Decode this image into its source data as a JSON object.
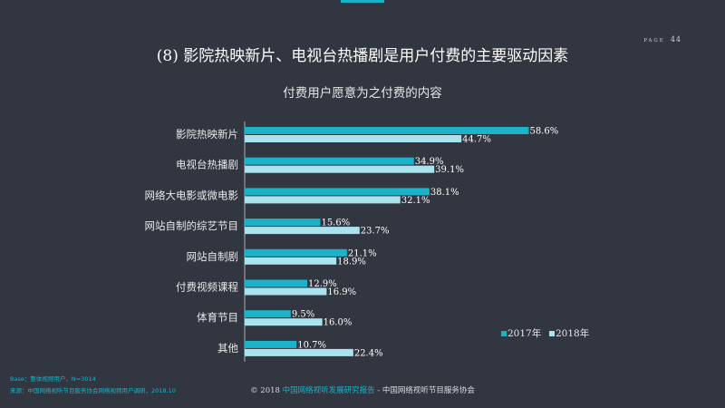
{
  "page": {
    "label": "PAGE",
    "number": "44"
  },
  "title": "(8) 影院热映新片、电视台热播剧是用户付费的主要驱动因素",
  "chart_data": {
    "type": "bar",
    "orientation": "horizontal",
    "title": "付费用户愿意为之付费的内容",
    "categories": [
      "影院热映新片",
      "电视台热播剧",
      "网络大电影或微电影",
      "网站自制的综艺节目",
      "网站自制剧",
      "付费视频课程",
      "体育节目",
      "其他"
    ],
    "series": [
      {
        "name": "2017年",
        "values": [
          58.6,
          34.9,
          38.1,
          15.6,
          21.1,
          12.9,
          9.5,
          10.7
        ],
        "labels": [
          "58.6%",
          "34.9%",
          "38.1%",
          "15.6%",
          "21.1%",
          "12.9%",
          "9.5%",
          "10.7%"
        ],
        "color": "#1BB3C8"
      },
      {
        "name": "2018年",
        "values": [
          44.7,
          39.1,
          32.1,
          23.7,
          18.9,
          16.9,
          16.0,
          22.4
        ],
        "labels": [
          "44.7%",
          "39.1%",
          "32.1%",
          "23.7%",
          "18.9%",
          "16.9%",
          "16.0%",
          "22.4%"
        ],
        "color": "#A9E3EE"
      }
    ],
    "xlim": [
      0,
      100
    ],
    "grid": false,
    "legend": "bottom-right"
  },
  "footer": {
    "base": "Base：整体视频用户，N=3014",
    "source": "来源：中国网络视听节目服务协会网络视频用户调研，2018.10",
    "copyright_prefix": "© 2018 ",
    "copyright_report": "中国网络视听发展研究报告",
    "copyright_suffix": " - 中国网络视听节目服务协会"
  }
}
